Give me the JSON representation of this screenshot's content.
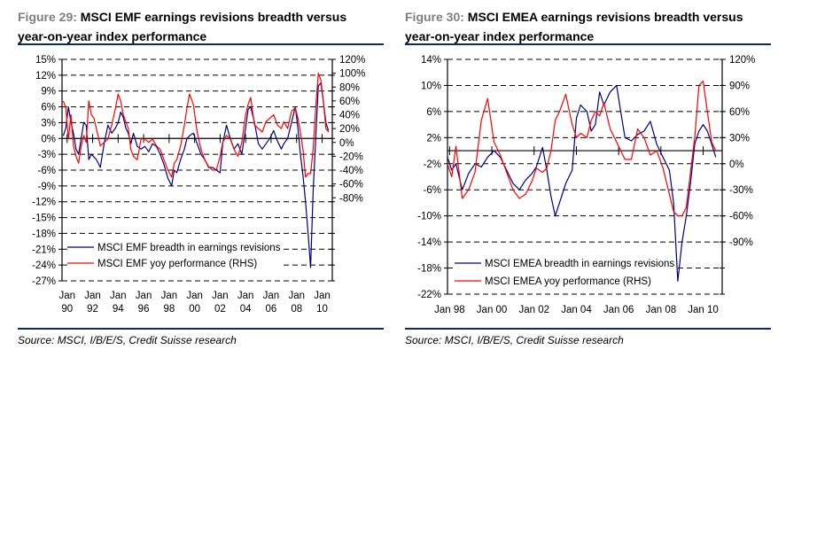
{
  "figures": [
    {
      "number_label": "Figure 29:",
      "title_line1": "MSCI EMF earnings revisions breadth versus",
      "title_line2": "year-on-year index performance",
      "source": "Source: MSCI, I/B/E/S, Credit Suisse research"
    },
    {
      "number_label": "Figure 30:",
      "title_line1": "MSCI EMEA earnings revisions breadth versus",
      "title_line2": "year-on-year index performance",
      "source": "Source: MSCI, I/B/E/S, Credit Suisse research"
    }
  ],
  "colors": {
    "breadth": "#00007f",
    "yoy": "#ff0000",
    "rule": "#0b2c5a"
  },
  "chart_data": [
    {
      "type": "line",
      "title": "MSCI EMF earnings revisions breadth versus year-on-year index performance",
      "ylim": [
        -27,
        15
      ],
      "y2lim": [
        -200,
        120
      ],
      "yticks": [
        "15%",
        "12%",
        "9%",
        "6%",
        "3%",
        "0%",
        "-3%",
        "-6%",
        "-9%",
        "-12%",
        "-15%",
        "-18%",
        "-21%",
        "-24%",
        "-27%"
      ],
      "y2ticks": [
        "120%",
        "100%",
        "80%",
        "60%",
        "40%",
        "20%",
        "0%",
        "-20%",
        "-40%",
        "-60%",
        "-80%"
      ],
      "xticks_top": [
        "Jan",
        "Jan",
        "Jan",
        "Jan",
        "Jan",
        "Jan",
        "Jan",
        "Jan",
        "Jan",
        "Jan",
        "Jan"
      ],
      "xticks_bottom": [
        "90",
        "92",
        "94",
        "96",
        "98",
        "00",
        "02",
        "04",
        "06",
        "08",
        "10"
      ],
      "xlim": [
        1989.6,
        2010.8
      ],
      "grid": "horizontal-dashed",
      "legend_position": "bottom-left",
      "series": [
        {
          "name": "MSCI EMF breadth in earnings revisions",
          "axis": "left",
          "x": [
            1989.7,
            1989.9,
            1990.1,
            1990.3,
            1990.5,
            1990.7,
            1990.9,
            1991.1,
            1991.3,
            1991.5,
            1991.7,
            1991.9,
            1992.1,
            1992.3,
            1992.6,
            1992.9,
            1993.2,
            1993.5,
            1993.8,
            1994.0,
            1994.2,
            1994.4,
            1994.6,
            1994.8,
            1995.0,
            1995.2,
            1995.5,
            1995.8,
            1996.1,
            1996.4,
            1996.7,
            1997.0,
            1997.3,
            1997.6,
            1997.9,
            1998.2,
            1998.4,
            1998.6,
            1998.9,
            1999.2,
            1999.4,
            1999.6,
            1999.9,
            2000.2,
            2000.5,
            2000.8,
            2001.1,
            2001.4,
            2001.7,
            2002.0,
            2002.2,
            2002.5,
            2002.8,
            2003.1,
            2003.4,
            2003.7,
            2004.0,
            2004.2,
            2004.4,
            2004.7,
            2005.0,
            2005.3,
            2005.6,
            2005.9,
            2006.2,
            2006.5,
            2006.8,
            2007.0,
            2007.3,
            2007.6,
            2007.9,
            2008.1,
            2008.3,
            2008.5,
            2008.7,
            2008.9,
            2009.1,
            2009.3,
            2009.5,
            2009.7,
            2009.9,
            2010.1,
            2010.3,
            2010.5
          ],
          "values": [
            0.5,
            2,
            6,
            3,
            1,
            -2,
            -3,
            0,
            3,
            2.5,
            -4,
            -3,
            -3.5,
            -4,
            -5.5,
            -1,
            2.5,
            1,
            2,
            3,
            5,
            4,
            2,
            1,
            -1,
            1,
            -1.5,
            -2,
            -1.5,
            -2.5,
            -1,
            -1.5,
            -3,
            -5,
            -7.5,
            -9,
            -6,
            -6.5,
            -4,
            -2,
            0,
            0.5,
            1,
            -1,
            -3,
            -4,
            -5.5,
            -5.5,
            -6,
            -6.5,
            -1,
            2.5,
            0,
            -2,
            -1,
            -3,
            2,
            5.5,
            6,
            3,
            -1,
            -2,
            -1,
            0,
            1.5,
            -0.5,
            -2,
            -1,
            0,
            3,
            6,
            2,
            -3,
            -7,
            -12,
            -18,
            -24.5,
            -10,
            0,
            10,
            10.5,
            7,
            3,
            1.5
          ]
        },
        {
          "name": "MSCI EMF yoy performance (RHS)",
          "axis": "right",
          "x": [
            1989.7,
            1989.9,
            1990.1,
            1990.3,
            1990.5,
            1990.7,
            1990.9,
            1991.1,
            1991.3,
            1991.5,
            1991.7,
            1991.9,
            1992.1,
            1992.3,
            1992.6,
            1992.9,
            1993.2,
            1993.5,
            1993.8,
            1994.0,
            1994.2,
            1994.4,
            1994.6,
            1994.8,
            1995.0,
            1995.2,
            1995.5,
            1995.8,
            1996.1,
            1996.4,
            1996.7,
            1997.0,
            1997.3,
            1997.6,
            1997.9,
            1998.2,
            1998.4,
            1998.6,
            1998.9,
            1999.2,
            1999.4,
            1999.6,
            1999.9,
            2000.2,
            2000.5,
            2000.8,
            2001.1,
            2001.4,
            2001.7,
            2002.0,
            2002.2,
            2002.5,
            2002.8,
            2003.1,
            2003.4,
            2003.7,
            2004.0,
            2004.2,
            2004.4,
            2004.7,
            2005.0,
            2005.3,
            2005.6,
            2005.9,
            2006.2,
            2006.5,
            2006.8,
            2007.0,
            2007.3,
            2007.6,
            2007.9,
            2008.1,
            2008.3,
            2008.5,
            2008.7,
            2008.9,
            2009.1,
            2009.3,
            2009.5,
            2009.7,
            2009.9,
            2010.1,
            2010.3,
            2010.5
          ],
          "values": [
            60,
            50,
            5,
            40,
            -5,
            -20,
            -30,
            -5,
            10,
            0,
            60,
            40,
            35,
            20,
            -5,
            0,
            5,
            25,
            50,
            70,
            60,
            40,
            30,
            20,
            -10,
            -20,
            -25,
            5,
            5,
            0,
            5,
            -5,
            -10,
            -25,
            -40,
            -50,
            -30,
            -25,
            -5,
            25,
            50,
            70,
            55,
            15,
            -10,
            -25,
            -35,
            -40,
            -40,
            -20,
            0,
            10,
            5,
            -10,
            -20,
            0,
            40,
            55,
            65,
            25,
            20,
            15,
            30,
            35,
            40,
            25,
            20,
            30,
            20,
            45,
            50,
            35,
            15,
            -10,
            -50,
            -45,
            -45,
            -10,
            50,
            100,
            90,
            60,
            20,
            15
          ]
        }
      ]
    },
    {
      "type": "line",
      "title": "MSCI EMEA earnings revisions breadth versus year-on-year index performance",
      "ylim": [
        -22,
        14
      ],
      "y2lim": [
        -150,
        120
      ],
      "yticks": [
        "14%",
        "10%",
        "6%",
        "2%",
        "-2%",
        "-6%",
        "-10%",
        "-14%",
        "-18%",
        "-22%"
      ],
      "y2ticks": [
        "120%",
        "90%",
        "60%",
        "30%",
        "0%",
        "-30%",
        "-60%",
        "-90%"
      ],
      "xticks": [
        "Jan 98",
        "Jan 00",
        "Jan 02",
        "Jan 04",
        "Jan 06",
        "Jan 08",
        "Jan 10"
      ],
      "xlim": [
        1997.9,
        2010.9
      ],
      "grid": "horizontal-dashed",
      "legend_position": "bottom-left",
      "series": [
        {
          "name": "MSCI EMEA breadth in earnings revisions",
          "axis": "left",
          "x": [
            1997.9,
            1998.1,
            1998.3,
            1998.6,
            1998.9,
            1999.2,
            1999.5,
            1999.8,
            2000.1,
            2000.4,
            2000.7,
            2001.0,
            2001.3,
            2001.6,
            2001.9,
            2002.1,
            2002.4,
            2002.6,
            2002.8,
            2003.0,
            2003.2,
            2003.5,
            2003.8,
            2004.0,
            2004.2,
            2004.5,
            2004.7,
            2004.9,
            2005.1,
            2005.3,
            2005.6,
            2005.9,
            2006.1,
            2006.3,
            2006.6,
            2006.9,
            2007.2,
            2007.5,
            2007.8,
            2008.1,
            2008.4,
            2008.6,
            2008.8,
            2009.0,
            2009.2,
            2009.4,
            2009.6,
            2009.8,
            2010.0,
            2010.2,
            2010.4,
            2010.6
          ],
          "values": [
            -1,
            -3,
            -2,
            -6,
            -3.5,
            -2,
            -2.5,
            -1,
            0,
            -1,
            -3,
            -5,
            -6,
            -4.5,
            -3.5,
            -2.5,
            0.5,
            -3,
            -7,
            -10,
            -8,
            -5,
            -3,
            5,
            7,
            6,
            3,
            4,
            9,
            7,
            9,
            10,
            6,
            2,
            1.5,
            2.5,
            3,
            4.5,
            1,
            -1,
            -3,
            -8,
            -20,
            -14,
            -10,
            -5,
            1,
            3,
            4,
            3,
            1,
            -1
          ]
        },
        {
          "name": "MSCI EMEA yoy performance (RHS)",
          "axis": "right",
          "x": [
            1997.9,
            1998.1,
            1998.3,
            1998.6,
            1998.9,
            1999.2,
            1999.5,
            1999.8,
            2000.1,
            2000.4,
            2000.7,
            2001.0,
            2001.3,
            2001.6,
            2001.9,
            2002.1,
            2002.4,
            2002.6,
            2002.8,
            2003.0,
            2003.2,
            2003.5,
            2003.8,
            2004.0,
            2004.2,
            2004.5,
            2004.7,
            2004.9,
            2005.1,
            2005.3,
            2005.6,
            2005.9,
            2006.1,
            2006.3,
            2006.6,
            2006.9,
            2007.2,
            2007.5,
            2007.8,
            2008.1,
            2008.4,
            2008.6,
            2008.8,
            2009.0,
            2009.2,
            2009.4,
            2009.6,
            2009.8,
            2010.0,
            2010.2,
            2010.4,
            2010.6
          ],
          "values": [
            0,
            -15,
            20,
            -40,
            -30,
            -10,
            50,
            75,
            25,
            10,
            -10,
            -30,
            -40,
            -35,
            -20,
            -5,
            -10,
            -5,
            15,
            50,
            60,
            80,
            45,
            30,
            35,
            30,
            50,
            60,
            55,
            70,
            40,
            25,
            15,
            5,
            5,
            40,
            30,
            10,
            15,
            -5,
            -35,
            -55,
            -60,
            -60,
            -50,
            -10,
            30,
            90,
            95,
            60,
            25,
            15
          ]
        }
      ]
    }
  ]
}
